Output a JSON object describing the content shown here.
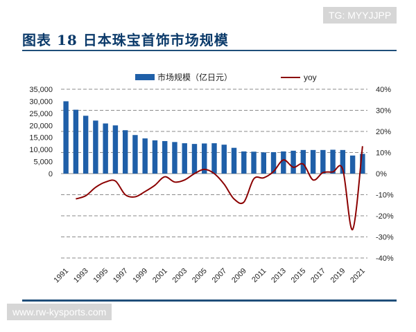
{
  "watermarks": {
    "top_right": "TG: MYYJJPP",
    "bottom_left": "www.rw-kysports.com"
  },
  "chart_data": {
    "type": "bar",
    "title": "图表 18 日本珠宝首饰市场规模",
    "x": [
      1991,
      1992,
      1993,
      1994,
      1995,
      1996,
      1997,
      1998,
      1999,
      2000,
      2001,
      2002,
      2003,
      2004,
      2005,
      2006,
      2007,
      2008,
      2009,
      2010,
      2011,
      2012,
      2013,
      2014,
      2015,
      2016,
      2017,
      2018,
      2019,
      2020,
      2021
    ],
    "x_tick_labels": [
      "1991",
      "1993",
      "1995",
      "1997",
      "1999",
      "2001",
      "2003",
      "2005",
      "2007",
      "2009",
      "2011",
      "2013",
      "2015",
      "2017",
      "2019",
      "2021"
    ],
    "series": [
      {
        "name": "市场规模（亿日元）",
        "type": "bar",
        "axis": "left",
        "color": "#1f5fa8",
        "values": [
          30000,
          26500,
          24000,
          22000,
          20800,
          20000,
          18000,
          16000,
          14600,
          13800,
          13500,
          13100,
          12600,
          12300,
          12500,
          12600,
          12000,
          10700,
          9200,
          9100,
          8800,
          8900,
          9200,
          9500,
          9800,
          9800,
          9800,
          9900,
          9800,
          7500,
          8200
        ]
      },
      {
        "name": "yoy",
        "type": "line",
        "axis": "right",
        "color": "#8b0000",
        "values": [
          null,
          -12,
          -10.5,
          -6.5,
          -4,
          -3.5,
          -10,
          -11,
          -8.5,
          -5.5,
          -1.5,
          -4,
          -3,
          0,
          2,
          0,
          -5,
          -12,
          -13.5,
          -2.5,
          -2,
          1,
          6.5,
          3,
          4.5,
          -3,
          0.5,
          0.8,
          2,
          -26.5,
          13
        ]
      }
    ],
    "left_axis": {
      "ylim": [
        0,
        35000
      ],
      "ticks": [
        0,
        5000,
        10000,
        15000,
        20000,
        25000,
        30000,
        35000
      ],
      "tick_labels": [
        "0",
        "5,000",
        "10,000",
        "15,000",
        "20,000",
        "25,000",
        "30,000",
        "35,000"
      ]
    },
    "right_axis": {
      "ylim": [
        -40,
        40
      ],
      "ticks": [
        -40,
        -30,
        -20,
        -10,
        0,
        10,
        20,
        30,
        40
      ],
      "tick_labels": [
        "-40%",
        "-30%",
        "-20%",
        "-10%",
        "0%",
        "10%",
        "20%",
        "30%",
        "40%"
      ]
    },
    "grid": true,
    "legend_position": "top-center"
  }
}
